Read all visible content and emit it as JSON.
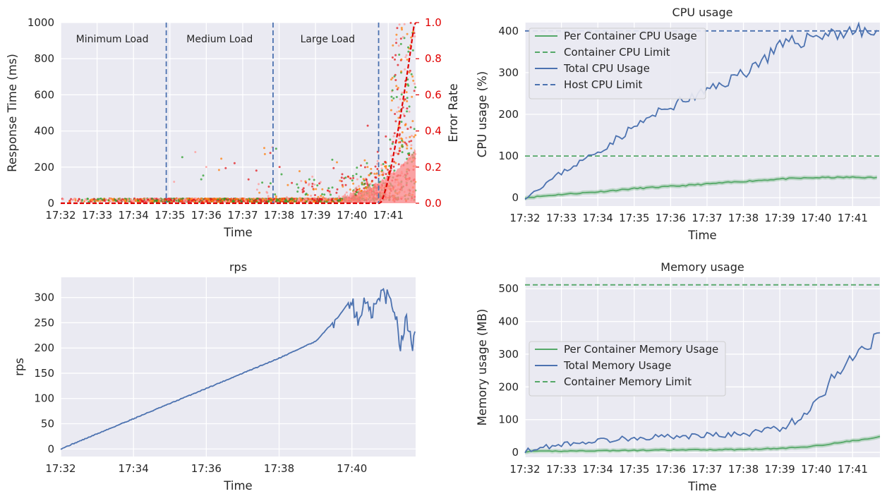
{
  "chart_data": [
    {
      "type": "scatter",
      "title": "",
      "xlabel": "Time",
      "ylabel": "Response Time (ms)",
      "ylabel_right": "Error Rate",
      "x_ticks": [
        "17:32",
        "17:33",
        "17:34",
        "17:35",
        "17:36",
        "17:37",
        "17:38",
        "17:39",
        "17:40",
        "17:41"
      ],
      "xlim": [
        "17:32:00",
        "17:41:45"
      ],
      "ylim": [
        0,
        1000
      ],
      "y_ticks": [
        "0",
        "200",
        "400",
        "600",
        "800",
        "1000"
      ],
      "y2lim": [
        0.0,
        1.0
      ],
      "y2_ticks": [
        "0.0",
        "0.2",
        "0.4",
        "0.6",
        "0.8",
        "1.0"
      ],
      "grid": true,
      "phase_lines": [
        "17:34:54",
        "17:37:50",
        "17:40:44"
      ],
      "annotations": [
        {
          "text": "Minimum Load",
          "at": "17:33:25"
        },
        {
          "text": "Medium Load",
          "at": "17:36:22"
        },
        {
          "text": "Large Load",
          "at": "17:39:20"
        }
      ],
      "colors": {
        "points": [
          "#e41a1c",
          "#2ca02c",
          "#ff7f0e",
          "#ff9896"
        ],
        "error_rate": "#e00000",
        "phase_line": "#4c72b0"
      }
    },
    {
      "type": "line",
      "title": "CPU usage",
      "xlabel": "Time",
      "ylabel": "CPU usage (%)",
      "x_ticks": [
        "17:32",
        "17:33",
        "17:34",
        "17:35",
        "17:36",
        "17:37",
        "17:38",
        "17:39",
        "17:40",
        "17:41"
      ],
      "xlim": [
        "17:32:00",
        "17:41:45"
      ],
      "ylim": [
        -20,
        420
      ],
      "y_ticks": [
        "0",
        "100",
        "200",
        "300",
        "400"
      ],
      "grid": true,
      "legend_position": "top-left",
      "x": [
        "17:32:00",
        "17:33:00",
        "17:34:00",
        "17:35:00",
        "17:36:00",
        "17:37:00",
        "17:38:00",
        "17:39:00",
        "17:40:00",
        "17:41:00",
        "17:41:40"
      ],
      "series": [
        {
          "name": "Per Container CPU Usage",
          "style": "solid",
          "color": "#55a868",
          "values": [
            0,
            8,
            14,
            22,
            27,
            33,
            39,
            45,
            48,
            49,
            48
          ]
        },
        {
          "name": "Container CPU Limit",
          "style": "dashed",
          "color": "#55a868",
          "constant": 100
        },
        {
          "name": "Total CPU Usage",
          "style": "solid",
          "color": "#4c72b0",
          "values": [
            0,
            60,
            110,
            170,
            220,
            255,
            300,
            360,
            390,
            400,
            395
          ]
        },
        {
          "name": "Host CPU Limit",
          "style": "dashed",
          "color": "#4c72b0",
          "constant": 400
        }
      ]
    },
    {
      "type": "line",
      "title": "rps",
      "xlabel": "Time",
      "ylabel": "rps",
      "x_ticks": [
        "17:32",
        "17:34",
        "17:36",
        "17:38",
        "17:40"
      ],
      "xlim": [
        "17:32:00",
        "17:41:45"
      ],
      "ylim": [
        -15,
        340
      ],
      "y_ticks": [
        "0",
        "50",
        "100",
        "150",
        "200",
        "250",
        "300"
      ],
      "grid": true,
      "x": [
        "17:32:00",
        "17:33:00",
        "17:34:00",
        "17:35:00",
        "17:36:00",
        "17:37:00",
        "17:38:00",
        "17:39:00",
        "17:39:40",
        "17:40:00",
        "17:40:10",
        "17:40:20",
        "17:40:30",
        "17:40:40",
        "17:40:50",
        "17:41:00",
        "17:41:10",
        "17:41:20",
        "17:41:30",
        "17:41:40",
        "17:41:45"
      ],
      "series": [
        {
          "name": "",
          "color": "#4c72b0",
          "values": [
            0,
            30,
            60,
            90,
            120,
            150,
            180,
            213,
            265,
            300,
            245,
            295,
            265,
            285,
            310,
            300,
            280,
            210,
            255,
            210,
            260
          ]
        }
      ]
    },
    {
      "type": "line",
      "title": "Memory usage",
      "xlabel": "Time",
      "ylabel": "Memory usage (MB)",
      "x_ticks": [
        "17:32",
        "17:33",
        "17:34",
        "17:35",
        "17:36",
        "17:37",
        "17:38",
        "17:39",
        "17:40",
        "17:41"
      ],
      "xlim": [
        "17:32:00",
        "17:41:45"
      ],
      "ylim": [
        -15,
        535
      ],
      "y_ticks": [
        "0",
        "100",
        "200",
        "300",
        "400",
        "500"
      ],
      "grid": true,
      "legend_position": "center-left",
      "x": [
        "17:32:00",
        "17:33:00",
        "17:34:00",
        "17:35:00",
        "17:36:00",
        "17:37:00",
        "17:38:00",
        "17:39:00",
        "17:39:30",
        "17:40:00",
        "17:40:30",
        "17:41:00",
        "17:41:30",
        "17:41:45"
      ],
      "series": [
        {
          "name": "Per Container Memory Usage",
          "style": "solid",
          "color": "#55a868",
          "values": [
            2,
            4,
            5,
            6,
            7,
            8,
            9,
            12,
            15,
            20,
            28,
            35,
            42,
            48
          ]
        },
        {
          "name": "Total Memory Usage",
          "style": "solid",
          "color": "#4c72b0",
          "values": [
            5,
            25,
            35,
            45,
            48,
            52,
            55,
            75,
            100,
            150,
            240,
            290,
            340,
            380
          ]
        },
        {
          "name": "Container Memory Limit",
          "style": "dashed",
          "color": "#55a868",
          "constant": 512
        }
      ]
    }
  ]
}
